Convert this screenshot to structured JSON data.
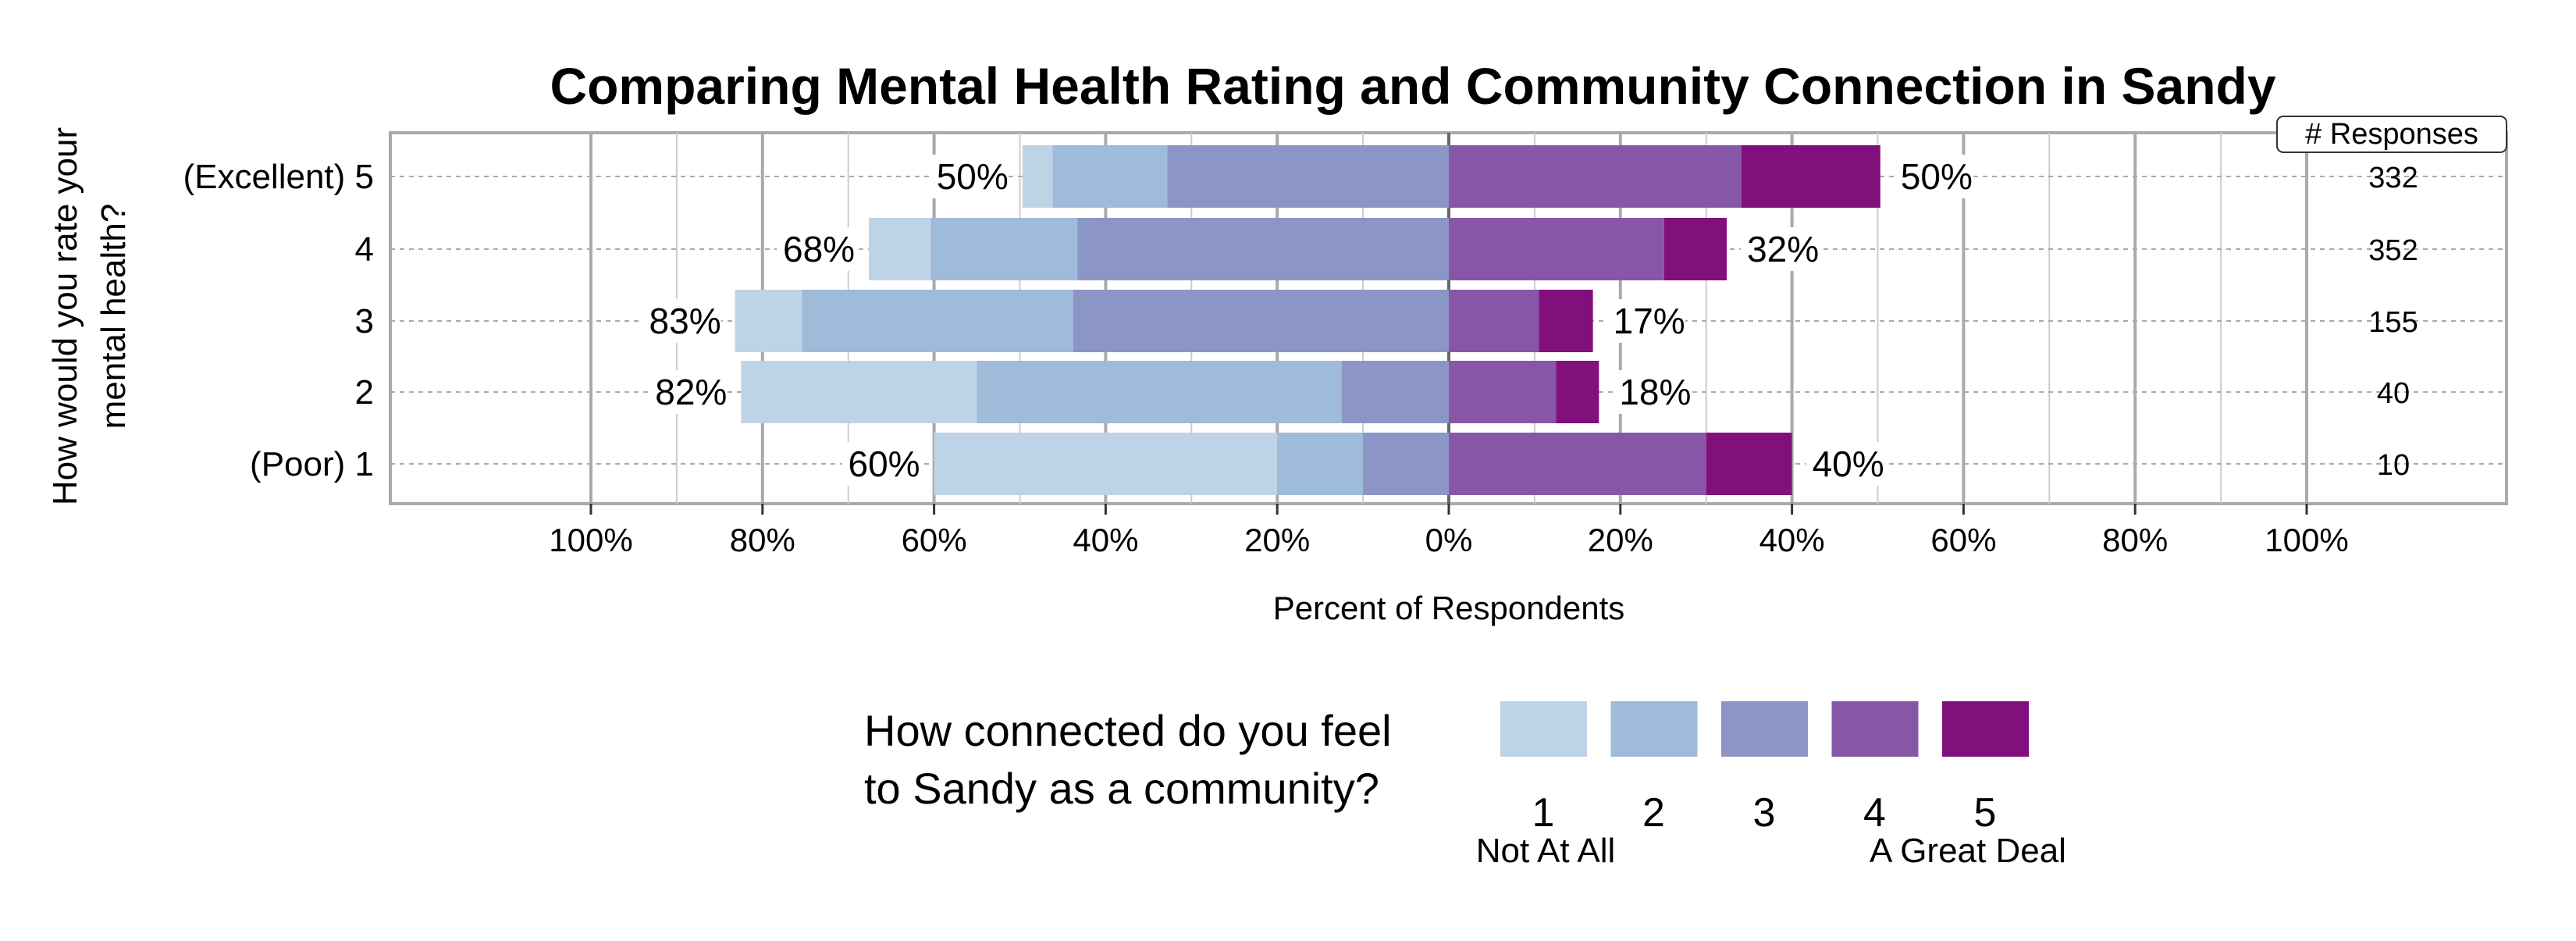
{
  "chart_data": {
    "type": "bar",
    "orientation": "horizontal-diverging",
    "stacked": true,
    "title": "Comparing Mental Health Rating and Community Connection in Sandy",
    "ylabel": [
      "How would you rate your",
      "mental health?"
    ],
    "xlabel": "Percent of Respondents",
    "xlim": [
      -100,
      100
    ],
    "xticks": [
      "100%",
      "80%",
      "60%",
      "40%",
      "20%",
      "0%",
      "20%",
      "40%",
      "60%",
      "80%",
      "100%"
    ],
    "grid": true,
    "categories": [
      "(Excellent) 5",
      "4",
      "3",
      "2",
      "(Poor) 1"
    ],
    "responses_header": "# Responses",
    "responses": [
      332,
      352,
      155,
      40,
      10
    ],
    "series": [
      {
        "name": "1",
        "color": "#bfd3e6",
        "values": [
          3.5,
          7.2,
          7.8,
          27.5,
          40
        ]
      },
      {
        "name": "2",
        "color": "#9ebbd9",
        "values": [
          13.4,
          17.1,
          31.6,
          42.5,
          10
        ]
      },
      {
        "name": "3",
        "color": "#8c96c6",
        "values": [
          32.8,
          43.3,
          43.8,
          12.5,
          10
        ]
      },
      {
        "name": "4",
        "color": "#8856a7",
        "values": [
          34.1,
          25.1,
          10.5,
          12.5,
          30
        ]
      },
      {
        "name": "5",
        "color": "#810f7c",
        "values": [
          16.2,
          7.3,
          6.3,
          5,
          10
        ]
      }
    ],
    "left_totals": [
      "50%",
      "68%",
      "83%",
      "82%",
      "60%"
    ],
    "right_totals": [
      "50%",
      "32%",
      "17%",
      "18%",
      "40%"
    ],
    "legend": {
      "title": [
        "How connected do you feel",
        "to Sandy as a community?"
      ],
      "low_label": "Not At All",
      "high_label": "A Great Deal",
      "placement": "bottom"
    }
  }
}
